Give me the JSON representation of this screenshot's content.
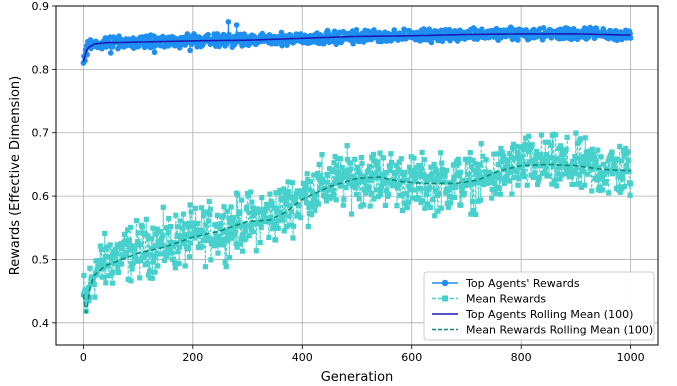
{
  "chart_data": {
    "type": "line",
    "xlabel": "Generation",
    "ylabel": "Rewards (Effective Dimension)",
    "xlim": [
      -50,
      1050
    ],
    "ylim": [
      0.365,
      0.9
    ],
    "x_ticks": [
      0,
      200,
      400,
      600,
      800,
      1000
    ],
    "y_ticks": [
      0.4,
      0.5,
      0.6,
      0.7,
      0.8,
      0.9
    ],
    "grid": true,
    "legend_position": "bottom-right",
    "series": [
      {
        "name": "Top Agents' Rewards",
        "style": "solid-line-circle-markers",
        "color": "#1f8ef1",
        "generations": [
          0,
          1000
        ],
        "mean_points": [
          [
            0,
            0.81
          ],
          [
            5,
            0.832
          ],
          [
            15,
            0.84
          ],
          [
            40,
            0.842
          ],
          [
            100,
            0.843
          ],
          [
            200,
            0.845
          ],
          [
            300,
            0.846
          ],
          [
            400,
            0.849
          ],
          [
            500,
            0.852
          ],
          [
            600,
            0.853
          ],
          [
            700,
            0.855
          ],
          [
            800,
            0.856
          ],
          [
            900,
            0.856
          ],
          [
            1000,
            0.854
          ]
        ],
        "noise_amplitude": 0.012,
        "outliers": [
          [
            0,
            0.81
          ],
          [
            5,
            0.825
          ],
          [
            50,
            0.826
          ],
          [
            130,
            0.827
          ],
          [
            195,
            0.83
          ],
          [
            265,
            0.875
          ],
          [
            280,
            0.87
          ]
        ]
      },
      {
        "name": "Mean Rewards",
        "style": "dashed-line-square-markers",
        "color": "#48d1cc",
        "generations": [
          0,
          1000
        ],
        "mean_points": [
          [
            0,
            0.44
          ],
          [
            5,
            0.43
          ],
          [
            10,
            0.45
          ],
          [
            20,
            0.48
          ],
          [
            50,
            0.5
          ],
          [
            100,
            0.515
          ],
          [
            200,
            0.535
          ],
          [
            300,
            0.56
          ],
          [
            350,
            0.57
          ],
          [
            400,
            0.6
          ],
          [
            450,
            0.62
          ],
          [
            500,
            0.63
          ],
          [
            550,
            0.63
          ],
          [
            600,
            0.62
          ],
          [
            700,
            0.623
          ],
          [
            750,
            0.63
          ],
          [
            800,
            0.65
          ],
          [
            850,
            0.65
          ],
          [
            900,
            0.645
          ],
          [
            1000,
            0.64
          ]
        ],
        "noise_amplitude": 0.065
      },
      {
        "name": "Top Agents Rolling Mean (100)",
        "style": "solid-line",
        "color": "#1a1ab5",
        "points": [
          [
            0,
            0.812
          ],
          [
            3,
            0.822
          ],
          [
            6,
            0.83
          ],
          [
            10,
            0.835
          ],
          [
            20,
            0.84
          ],
          [
            40,
            0.842
          ],
          [
            100,
            0.843
          ],
          [
            200,
            0.845
          ],
          [
            300,
            0.846
          ],
          [
            400,
            0.849
          ],
          [
            500,
            0.852
          ],
          [
            600,
            0.853
          ],
          [
            700,
            0.855
          ],
          [
            800,
            0.856
          ],
          [
            900,
            0.856
          ],
          [
            1000,
            0.854
          ]
        ]
      },
      {
        "name": "Mean Rewards Rolling Mean (100)",
        "style": "dashed-line",
        "color": "#0b8a7a",
        "points": [
          [
            0,
            0.445
          ],
          [
            5,
            0.41
          ],
          [
            8,
            0.43
          ],
          [
            12,
            0.455
          ],
          [
            20,
            0.475
          ],
          [
            40,
            0.49
          ],
          [
            100,
            0.51
          ],
          [
            150,
            0.52
          ],
          [
            200,
            0.535
          ],
          [
            250,
            0.545
          ],
          [
            300,
            0.56
          ],
          [
            340,
            0.562
          ],
          [
            370,
            0.575
          ],
          [
            400,
            0.595
          ],
          [
            450,
            0.615
          ],
          [
            500,
            0.628
          ],
          [
            540,
            0.63
          ],
          [
            580,
            0.623
          ],
          [
            620,
            0.62
          ],
          [
            680,
            0.62
          ],
          [
            720,
            0.625
          ],
          [
            760,
            0.64
          ],
          [
            800,
            0.648
          ],
          [
            850,
            0.65
          ],
          [
            900,
            0.648
          ],
          [
            950,
            0.642
          ],
          [
            1000,
            0.64
          ]
        ]
      }
    ]
  }
}
